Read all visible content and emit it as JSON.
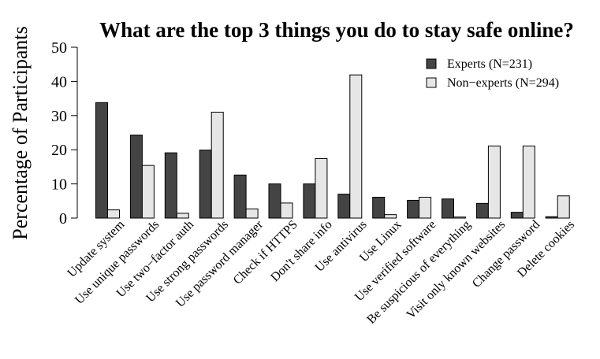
{
  "chart_data": {
    "type": "bar",
    "title": "What are the top 3 things you do to stay safe online?",
    "ylabel": "Percentage of Participants",
    "xlabel": "",
    "ylim": [
      0,
      50
    ],
    "yticks": [
      0,
      10,
      20,
      30,
      40,
      50
    ],
    "legend_position": "top-right",
    "categories": [
      "Update system",
      "Use unique passwords",
      "Use two−factor auth",
      "Use strong passwords",
      "Use password manager",
      "Check if HTTPS",
      "Don't share info",
      "Use antivirus",
      "Use Linux",
      "Use verified software",
      "Be suspicious of everything",
      "Visit only known websites",
      "Change password",
      "Delete cookies"
    ],
    "series": [
      {
        "name": "Experts (N=231)",
        "color": "#444444",
        "values": [
          33.8,
          24.3,
          19.1,
          19.9,
          12.6,
          10.0,
          10.0,
          7.0,
          6.1,
          5.2,
          5.6,
          4.3,
          1.7,
          0.4
        ]
      },
      {
        "name": "Non−experts (N=294)",
        "color": "#e6e6e6",
        "values": [
          2.4,
          15.4,
          1.4,
          31.0,
          2.7,
          4.4,
          17.4,
          41.9,
          1.0,
          6.1,
          0.3,
          21.1,
          21.1,
          6.5
        ]
      }
    ]
  }
}
